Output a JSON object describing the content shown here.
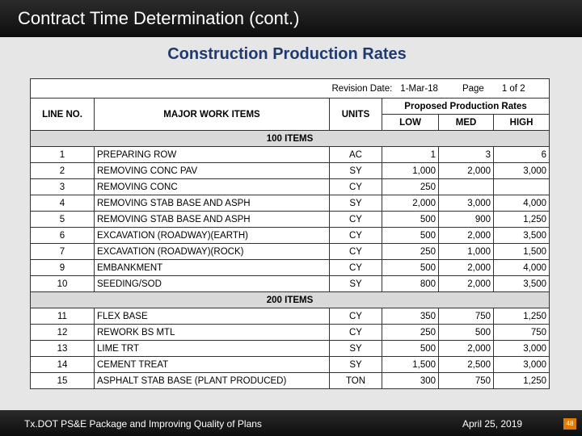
{
  "header": {
    "title": "Contract Time Determination (cont.)",
    "subtitle": "Construction Production Rates"
  },
  "table": {
    "meta": {
      "revision_label": "Revision Date:",
      "revision_date": "1-Mar-18",
      "page_label": "Page",
      "page_value": "1 of 2"
    },
    "columns": {
      "line_no": "LINE NO.",
      "items": "MAJOR WORK ITEMS",
      "units": "UNITS",
      "rates": "Proposed Production Rates",
      "low": "LOW",
      "med": "MED",
      "high": "HIGH"
    },
    "sections": [
      {
        "title": "100 ITEMS",
        "rows": [
          [
            "1",
            "PREPARING ROW",
            "AC",
            "1",
            "3",
            "6"
          ],
          [
            "2",
            "REMOVING CONC PAV",
            "SY",
            "1,000",
            "2,000",
            "3,000"
          ],
          [
            "3",
            "REMOVING CONC",
            "CY",
            "250",
            null,
            null
          ],
          [
            "4",
            "REMOVING STAB BASE AND ASPH",
            "SY",
            "2,000",
            "3,000",
            "4,000"
          ],
          [
            "5",
            "REMOVING STAB BASE AND ASPH",
            "CY",
            "500",
            "900",
            "1,250"
          ],
          [
            "6",
            "EXCAVATION  (ROADWAY)(EARTH)",
            "CY",
            "500",
            "2,000",
            "3,500"
          ],
          [
            "7",
            "EXCAVATION  (ROADWAY)(ROCK)",
            "CY",
            "250",
            "1,000",
            "1,500"
          ],
          [
            "9",
            "EMBANKMENT",
            "CY",
            "500",
            "2,000",
            "4,000"
          ],
          [
            "10",
            "SEEDING/SOD",
            "SY",
            "800",
            "2,000",
            "3,500"
          ]
        ]
      },
      {
        "title": "200 ITEMS",
        "rows": [
          [
            "11",
            "FLEX BASE",
            "CY",
            "350",
            "750",
            "1,250"
          ],
          [
            "12",
            "REWORK BS MTL",
            "CY",
            "250",
            "500",
            "750"
          ],
          [
            "13",
            "LIME TRT",
            "SY",
            "500",
            "2,000",
            "3,000"
          ],
          [
            "14",
            "CEMENT TREAT",
            "SY",
            "1,500",
            "2,500",
            "3,000"
          ],
          [
            "15",
            "ASPHALT STAB BASE (PLANT PRODUCED)",
            "TON",
            "300",
            "750",
            "1,250"
          ]
        ]
      }
    ]
  },
  "footer": {
    "left": "Tx.DOT PS&E Package and Improving Quality of Plans",
    "date": "April 25, 2019",
    "page": "48"
  }
}
